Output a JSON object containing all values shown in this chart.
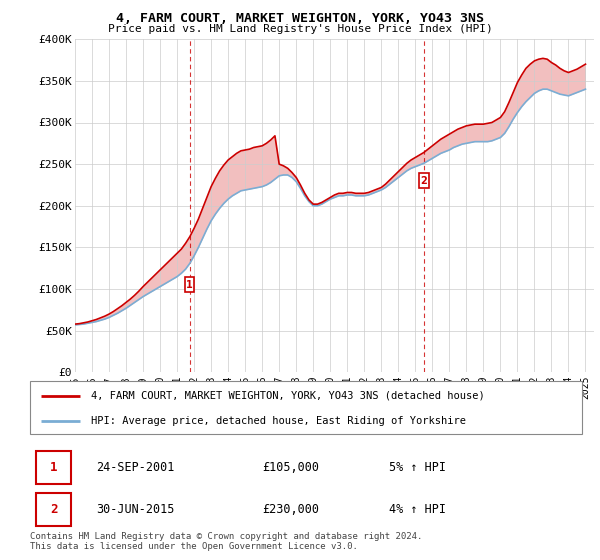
{
  "title": "4, FARM COURT, MARKET WEIGHTON, YORK, YO43 3NS",
  "subtitle": "Price paid vs. HM Land Registry's House Price Index (HPI)",
  "legend_line1": "4, FARM COURT, MARKET WEIGHTON, YORK, YO43 3NS (detached house)",
  "legend_line2": "HPI: Average price, detached house, East Riding of Yorkshire",
  "footer": "Contains HM Land Registry data © Crown copyright and database right 2024.\nThis data is licensed under the Open Government Licence v3.0.",
  "transaction1_date": "24-SEP-2001",
  "transaction1_price": "£105,000",
  "transaction1_hpi": "5% ↑ HPI",
  "transaction2_date": "30-JUN-2015",
  "transaction2_price": "£230,000",
  "transaction2_hpi": "4% ↑ HPI",
  "line_color_red": "#cc0000",
  "line_color_blue": "#7aadd4",
  "background_color": "#ffffff",
  "grid_color": "#cccccc",
  "ylim": [
    0,
    400000
  ],
  "xlim_start": 1995.0,
  "xlim_end": 2025.5,
  "yticks": [
    0,
    50000,
    100000,
    150000,
    200000,
    250000,
    300000,
    350000,
    400000
  ],
  "ytick_labels": [
    "£0",
    "£50K",
    "£100K",
    "£150K",
    "£200K",
    "£250K",
    "£300K",
    "£350K",
    "£400K"
  ],
  "xticks": [
    1995,
    1996,
    1997,
    1998,
    1999,
    2000,
    2001,
    2002,
    2003,
    2004,
    2005,
    2006,
    2007,
    2008,
    2009,
    2010,
    2011,
    2012,
    2013,
    2014,
    2015,
    2016,
    2017,
    2018,
    2019,
    2020,
    2021,
    2022,
    2023,
    2024,
    2025
  ],
  "hpi_years": [
    1995.0,
    1995.25,
    1995.5,
    1995.75,
    1996.0,
    1996.25,
    1996.5,
    1996.75,
    1997.0,
    1997.25,
    1997.5,
    1997.75,
    1998.0,
    1998.25,
    1998.5,
    1998.75,
    1999.0,
    1999.25,
    1999.5,
    1999.75,
    2000.0,
    2000.25,
    2000.5,
    2000.75,
    2001.0,
    2001.25,
    2001.5,
    2001.75,
    2002.0,
    2002.25,
    2002.5,
    2002.75,
    2003.0,
    2003.25,
    2003.5,
    2003.75,
    2004.0,
    2004.25,
    2004.5,
    2004.75,
    2005.0,
    2005.25,
    2005.5,
    2005.75,
    2006.0,
    2006.25,
    2006.5,
    2006.75,
    2007.0,
    2007.25,
    2007.5,
    2007.75,
    2008.0,
    2008.25,
    2008.5,
    2008.75,
    2009.0,
    2009.25,
    2009.5,
    2009.75,
    2010.0,
    2010.25,
    2010.5,
    2010.75,
    2011.0,
    2011.25,
    2011.5,
    2011.75,
    2012.0,
    2012.25,
    2012.5,
    2012.75,
    2013.0,
    2013.25,
    2013.5,
    2013.75,
    2014.0,
    2014.25,
    2014.5,
    2014.75,
    2015.0,
    2015.25,
    2015.5,
    2015.75,
    2016.0,
    2016.25,
    2016.5,
    2016.75,
    2017.0,
    2017.25,
    2017.5,
    2017.75,
    2018.0,
    2018.25,
    2018.5,
    2018.75,
    2019.0,
    2019.25,
    2019.5,
    2019.75,
    2020.0,
    2020.25,
    2020.5,
    2020.75,
    2021.0,
    2021.25,
    2021.5,
    2021.75,
    2022.0,
    2022.25,
    2022.5,
    2022.75,
    2023.0,
    2023.25,
    2023.5,
    2023.75,
    2024.0,
    2024.25,
    2024.5,
    2024.75,
    2025.0
  ],
  "hpi_values": [
    57000,
    57500,
    58000,
    59000,
    60000,
    61000,
    62500,
    64000,
    66000,
    68500,
    71000,
    74000,
    77000,
    80500,
    84000,
    87500,
    91000,
    94000,
    97000,
    100000,
    103000,
    106000,
    109000,
    112000,
    115000,
    119000,
    124000,
    131000,
    140000,
    150000,
    161000,
    172000,
    182000,
    190000,
    197000,
    203000,
    208000,
    212000,
    215000,
    218000,
    219000,
    220000,
    221000,
    222000,
    223000,
    225000,
    228000,
    232000,
    236000,
    237000,
    237000,
    234000,
    229000,
    221000,
    212000,
    205000,
    200000,
    200000,
    202000,
    205000,
    208000,
    210000,
    212000,
    212000,
    213000,
    213000,
    212000,
    212000,
    212000,
    213000,
    215000,
    217000,
    219000,
    222000,
    226000,
    230000,
    234000,
    238000,
    242000,
    245000,
    247000,
    249000,
    251000,
    254000,
    257000,
    260000,
    263000,
    265000,
    267000,
    270000,
    272000,
    274000,
    275000,
    276000,
    277000,
    277000,
    277000,
    277000,
    278000,
    280000,
    282000,
    287000,
    295000,
    304000,
    312000,
    319000,
    325000,
    330000,
    335000,
    338000,
    340000,
    340000,
    338000,
    336000,
    334000,
    333000,
    332000,
    334000,
    336000,
    338000,
    340000
  ],
  "price_years": [
    1995.0,
    1995.25,
    1995.5,
    1995.75,
    1996.0,
    1996.25,
    1996.5,
    1996.75,
    1997.0,
    1997.25,
    1997.5,
    1997.75,
    1998.0,
    1998.25,
    1998.5,
    1998.75,
    1999.0,
    1999.25,
    1999.5,
    1999.75,
    2000.0,
    2000.25,
    2000.5,
    2000.75,
    2001.0,
    2001.25,
    2001.5,
    2001.75,
    2002.0,
    2002.25,
    2002.5,
    2002.75,
    2003.0,
    2003.25,
    2003.5,
    2003.75,
    2004.0,
    2004.25,
    2004.5,
    2004.75,
    2005.0,
    2005.25,
    2005.5,
    2005.75,
    2006.0,
    2006.25,
    2006.5,
    2006.75,
    2007.0,
    2007.25,
    2007.5,
    2007.75,
    2008.0,
    2008.25,
    2008.5,
    2008.75,
    2009.0,
    2009.25,
    2009.5,
    2009.75,
    2010.0,
    2010.25,
    2010.5,
    2010.75,
    2011.0,
    2011.25,
    2011.5,
    2011.75,
    2012.0,
    2012.25,
    2012.5,
    2012.75,
    2013.0,
    2013.25,
    2013.5,
    2013.75,
    2014.0,
    2014.25,
    2014.5,
    2014.75,
    2015.0,
    2015.25,
    2015.5,
    2015.75,
    2016.0,
    2016.25,
    2016.5,
    2016.75,
    2017.0,
    2017.25,
    2017.5,
    2017.75,
    2018.0,
    2018.25,
    2018.5,
    2018.75,
    2019.0,
    2019.25,
    2019.5,
    2019.75,
    2020.0,
    2020.25,
    2020.5,
    2020.75,
    2021.0,
    2021.25,
    2021.5,
    2021.75,
    2022.0,
    2022.25,
    2022.5,
    2022.75,
    2023.0,
    2023.25,
    2023.5,
    2023.75,
    2024.0,
    2024.25,
    2024.5,
    2024.75,
    2025.0
  ],
  "price_values": [
    58000,
    58500,
    59500,
    60500,
    62000,
    63500,
    65500,
    67500,
    70000,
    73000,
    76500,
    80000,
    84000,
    88000,
    92500,
    97500,
    103000,
    108000,
    113000,
    118000,
    123000,
    128000,
    133000,
    138000,
    143000,
    148000,
    155000,
    163000,
    173000,
    184000,
    197000,
    210000,
    223000,
    233000,
    242000,
    249000,
    255000,
    259000,
    263000,
    266000,
    267000,
    268000,
    270000,
    271000,
    272000,
    275000,
    279000,
    284000,
    250000,
    248000,
    245000,
    240000,
    234000,
    225000,
    215000,
    207000,
    202000,
    202000,
    204000,
    207000,
    210000,
    213000,
    215000,
    215000,
    216000,
    216000,
    215000,
    215000,
    215000,
    216000,
    218000,
    220000,
    222000,
    226000,
    231000,
    236000,
    241000,
    246000,
    251000,
    255000,
    258000,
    261000,
    264000,
    268000,
    272000,
    276000,
    280000,
    283000,
    286000,
    289000,
    292000,
    294000,
    296000,
    297000,
    298000,
    298000,
    298000,
    299000,
    300000,
    303000,
    306000,
    313000,
    324000,
    336000,
    348000,
    357000,
    365000,
    370000,
    374000,
    376000,
    377000,
    376000,
    372000,
    369000,
    365000,
    362000,
    360000,
    362000,
    364000,
    367000,
    370000
  ],
  "transaction1_x": 2001.73,
  "transaction1_y": 105000,
  "transaction2_x": 2015.5,
  "transaction2_y": 230000
}
